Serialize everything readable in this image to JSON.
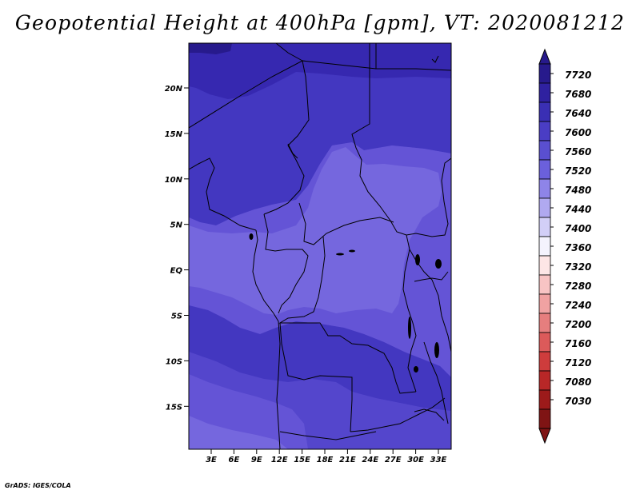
{
  "title": "Geopotential Height at 400hPa [gpm], VT: 2020081212",
  "credit": "GrADS: IGES/COLA",
  "map": {
    "lat_ticks": [
      "20N",
      "15N",
      "10N",
      "5N",
      "EQ",
      "5S",
      "10S",
      "15S"
    ],
    "lon_ticks": [
      "3E",
      "6E",
      "9E",
      "12E",
      "15E",
      "18E",
      "21E",
      "24E",
      "27E",
      "30E",
      "33E"
    ]
  },
  "colorbar": {
    "levels": [
      "7720",
      "7680",
      "7640",
      "7600",
      "7560",
      "7520",
      "7480",
      "7440",
      "7400",
      "7360",
      "7320",
      "7280",
      "7240",
      "7200",
      "7160",
      "7120",
      "7080",
      "7030"
    ],
    "colors": [
      "#271a8c",
      "#2f21a0",
      "#3a2fb4",
      "#4a3dc4",
      "#5a4fd0",
      "#6b60dc",
      "#8e84e8",
      "#b0a9f0",
      "#d2cff7",
      "#f4f3fd",
      "#fde6e6",
      "#f8c4c4",
      "#f0a2a2",
      "#e67e7e",
      "#dc5a5a",
      "#ce3c3c",
      "#b82727",
      "#9c1a1a",
      "#7f1414"
    ],
    "top_color": "#271a8c",
    "bottom_color": "#7f1414"
  },
  "field_colors": {
    "c7680": "#3628b0",
    "c7640": "#4337c0",
    "c7600": "#5446cc",
    "c7560": "#6454d6",
    "c7520": "#7567de"
  }
}
